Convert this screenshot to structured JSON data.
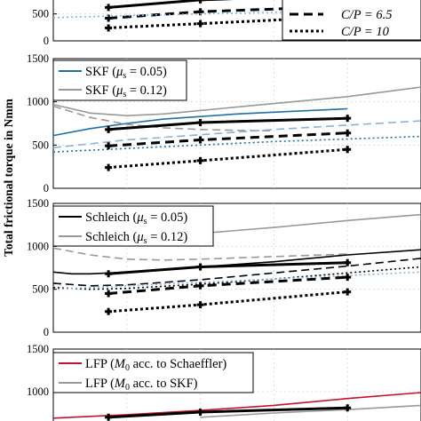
{
  "ylabel": "Total frictional torque in Nmm",
  "x_range": [
    0,
    10
  ],
  "colors": {
    "black": "#000000",
    "red": "#c8102e",
    "blue": "#1f6fa8",
    "gray": "#999999",
    "light_blue": "#8ab3d9",
    "grid": "#d9d9d9"
  },
  "panels": [
    {
      "ylim": [
        0,
        1500
      ],
      "yticks": [
        0,
        500
      ],
      "legend": [
        {
          "label": "C/P = 6.5",
          "style": "dash",
          "color": "#000000"
        },
        {
          "label": "C/P = 10",
          "style": "dot",
          "color": "#000000"
        }
      ],
      "series": [
        {
          "kind": "measured",
          "style": "solid",
          "color": "#000000",
          "x": [
            1.5,
            4,
            8
          ],
          "y": [
            620,
            760,
            860
          ]
        },
        {
          "kind": "measured",
          "style": "dash",
          "color": "#000000",
          "x": [
            1.5,
            4,
            8
          ],
          "y": [
            420,
            540,
            640
          ]
        },
        {
          "kind": "measured",
          "style": "dot",
          "color": "#000000",
          "x": [
            1.5,
            4,
            8
          ],
          "y": [
            240,
            320,
            450
          ]
        },
        {
          "kind": "model",
          "style": "dot",
          "color": "#8ab3d9",
          "x": [
            0,
            2,
            4,
            6,
            8,
            10
          ],
          "y": [
            430,
            470,
            500,
            530,
            560,
            590
          ]
        }
      ]
    },
    {
      "ylim": [
        0,
        1500
      ],
      "yticks": [
        0,
        500,
        1000,
        1500
      ],
      "legend": [
        {
          "label_main": "SKF (",
          "label_mu": "μ",
          "label_sub": "s",
          "label_tail": " = 0.05)",
          "style": "solid",
          "color": "#1f6fa8"
        },
        {
          "label_main": "SKF (",
          "label_mu": "μ",
          "label_sub": "s",
          "label_tail": " = 0.12)",
          "style": "solid",
          "color": "#999999"
        }
      ],
      "series": [
        {
          "kind": "model",
          "style": "solid",
          "color": "#1f6fa8",
          "x": [
            0,
            1,
            2,
            3,
            4,
            5,
            6,
            8
          ],
          "y": [
            610,
            690,
            750,
            800,
            830,
            860,
            880,
            920
          ]
        },
        {
          "kind": "model",
          "style": "solid",
          "color": "#999999",
          "x": [
            0,
            1,
            2,
            3,
            4,
            6,
            8,
            10
          ],
          "y": [
            970,
            870,
            840,
            860,
            900,
            980,
            1060,
            1170
          ]
        },
        {
          "kind": "model",
          "style": "dash",
          "color": "#999999",
          "x": [
            0,
            1,
            2,
            3,
            4,
            5,
            6
          ],
          "y": [
            950,
            820,
            740,
            700,
            680,
            670,
            665
          ]
        },
        {
          "kind": "model",
          "style": "dash",
          "color": "#8ab3d9",
          "x": [
            0,
            2,
            4,
            6,
            8,
            10
          ],
          "y": [
            470,
            560,
            620,
            680,
            730,
            780
          ]
        },
        {
          "kind": "model",
          "style": "dot",
          "color": "#1f6fa8",
          "x": [
            0,
            2,
            4,
            6,
            8,
            10
          ],
          "y": [
            420,
            460,
            500,
            540,
            570,
            600
          ]
        },
        {
          "kind": "measured",
          "style": "solid",
          "color": "#000000",
          "x": [
            1.5,
            4,
            8
          ],
          "y": [
            680,
            760,
            810
          ]
        },
        {
          "kind": "measured",
          "style": "dash",
          "color": "#000000",
          "x": [
            1.5,
            4,
            8
          ],
          "y": [
            490,
            560,
            640
          ]
        },
        {
          "kind": "measured",
          "style": "dot",
          "color": "#000000",
          "x": [
            1.5,
            4,
            8
          ],
          "y": [
            240,
            320,
            450
          ]
        }
      ]
    },
    {
      "ylim": [
        0,
        1500
      ],
      "yticks": [
        0,
        500,
        1000,
        1500
      ],
      "legend": [
        {
          "label_main": "Schleich (",
          "label_mu": "μ",
          "label_sub": "s",
          "label_tail": " = 0.05)",
          "style": "solid",
          "color": "#000000"
        },
        {
          "label_main": "Schleich (",
          "label_mu": "μ",
          "label_sub": "s",
          "label_tail": " = 0.12)",
          "style": "solid",
          "color": "#999999"
        }
      ],
      "series": [
        {
          "kind": "model",
          "style": "solid",
          "color": "#999999",
          "x": [
            0,
            1,
            2,
            4,
            6,
            8,
            10
          ],
          "y": [
            1120,
            1080,
            1090,
            1150,
            1220,
            1300,
            1370
          ]
        },
        {
          "kind": "model",
          "style": "dash",
          "color": "#999999",
          "x": [
            0,
            1,
            2,
            3,
            4,
            6,
            8
          ],
          "y": [
            980,
            900,
            850,
            840,
            850,
            880,
            910
          ]
        },
        {
          "kind": "model",
          "style": "solid",
          "color": "#000000",
          "x": [
            0,
            0.5,
            1,
            2,
            4,
            6,
            8,
            10
          ],
          "y": [
            700,
            680,
            680,
            700,
            760,
            820,
            900,
            960
          ]
        },
        {
          "kind": "model",
          "style": "dash",
          "color": "#000000",
          "x": [
            0,
            1,
            2,
            4,
            6,
            8,
            10
          ],
          "y": [
            570,
            540,
            550,
            610,
            690,
            770,
            860
          ]
        },
        {
          "kind": "model",
          "style": "dot",
          "color": "#000000",
          "x": [
            0,
            1,
            2,
            4,
            6,
            8,
            10
          ],
          "y": [
            520,
            500,
            510,
            560,
            620,
            690,
            760
          ]
        },
        {
          "kind": "model",
          "style": "dot",
          "color": "#8ab3d9",
          "x": [
            0,
            2,
            4,
            6,
            8,
            10
          ],
          "y": [
            500,
            540,
            580,
            620,
            660,
            700
          ]
        },
        {
          "kind": "measured",
          "style": "solid",
          "color": "#000000",
          "x": [
            1.5,
            4,
            8
          ],
          "y": [
            680,
            760,
            810
          ]
        },
        {
          "kind": "measured",
          "style": "dash",
          "color": "#000000",
          "x": [
            1.5,
            4,
            8
          ],
          "y": [
            450,
            540,
            640
          ]
        },
        {
          "kind": "measured",
          "style": "dot",
          "color": "#000000",
          "x": [
            1.5,
            4,
            8
          ],
          "y": [
            240,
            320,
            470
          ]
        }
      ]
    },
    {
      "ylim": [
        500,
        1500
      ],
      "yticks": [
        1000,
        1500
      ],
      "legend": [
        {
          "label_main": "LFP (",
          "label_mu": "M",
          "label_sub": "0",
          "label_tail": " acc. to Schaeffler)",
          "style": "solid",
          "color": "#c8102e"
        },
        {
          "label_main": "LFP (",
          "label_mu": "M",
          "label_sub": "0",
          "label_tail": " acc. to SKF)",
          "style": "solid",
          "color": "#999999"
        }
      ],
      "series": [
        {
          "kind": "model",
          "style": "solid",
          "color": "#c8102e",
          "x": [
            0,
            2,
            4,
            6,
            8,
            10
          ],
          "y": [
            690,
            730,
            780,
            840,
            920,
            990
          ]
        },
        {
          "kind": "model",
          "style": "solid",
          "color": "#999999",
          "x": [
            4,
            6,
            8,
            10
          ],
          "y": [
            700,
            750,
            790,
            840
          ]
        },
        {
          "kind": "measured",
          "style": "solid",
          "color": "#000000",
          "x": [
            1.5,
            4,
            8
          ],
          "y": [
            700,
            760,
            810
          ]
        }
      ]
    }
  ]
}
